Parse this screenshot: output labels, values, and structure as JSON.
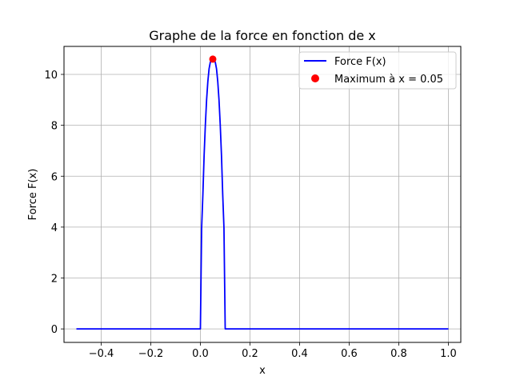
{
  "chart_data": {
    "type": "line",
    "title": "Graphe de la force en fonction de x",
    "xlabel": "x",
    "ylabel": "Force F(x)",
    "xlim": [
      -0.55,
      1.05
    ],
    "ylim": [
      -0.53,
      11.1
    ],
    "xticks": [
      -0.4,
      -0.2,
      0.0,
      0.2,
      0.4,
      0.6,
      0.8,
      1.0
    ],
    "xtick_labels": [
      "−0.4",
      "−0.2",
      "0.0",
      "0.2",
      "0.4",
      "0.6",
      "0.8",
      "1.0"
    ],
    "yticks": [
      0,
      2,
      4,
      6,
      8,
      10
    ],
    "ytick_labels": [
      "0",
      "2",
      "4",
      "6",
      "8",
      "10"
    ],
    "grid": true,
    "legend_position": "top-right",
    "series": [
      {
        "name": "Force F(x)",
        "kind": "line",
        "color": "#0000ff",
        "points": [
          [
            -0.5,
            0
          ],
          [
            0.0,
            0
          ],
          [
            0.005,
            3.97
          ],
          [
            0.01,
            5.28
          ],
          [
            0.015,
            6.82
          ],
          [
            0.02,
            8.02
          ],
          [
            0.025,
            9.0
          ],
          [
            0.03,
            9.72
          ],
          [
            0.035,
            10.22
          ],
          [
            0.04,
            10.48
          ],
          [
            0.045,
            10.58
          ],
          [
            0.05,
            10.6
          ],
          [
            0.055,
            10.58
          ],
          [
            0.06,
            10.48
          ],
          [
            0.065,
            10.22
          ],
          [
            0.07,
            9.72
          ],
          [
            0.075,
            9.0
          ],
          [
            0.08,
            8.02
          ],
          [
            0.085,
            6.82
          ],
          [
            0.09,
            5.28
          ],
          [
            0.095,
            3.97
          ],
          [
            0.1,
            0
          ],
          [
            1.0,
            0
          ]
        ]
      },
      {
        "name": "Maximum à x = 0.05",
        "kind": "scatter",
        "color": "#ff0000",
        "points": [
          [
            0.05,
            10.6
          ]
        ]
      }
    ]
  }
}
